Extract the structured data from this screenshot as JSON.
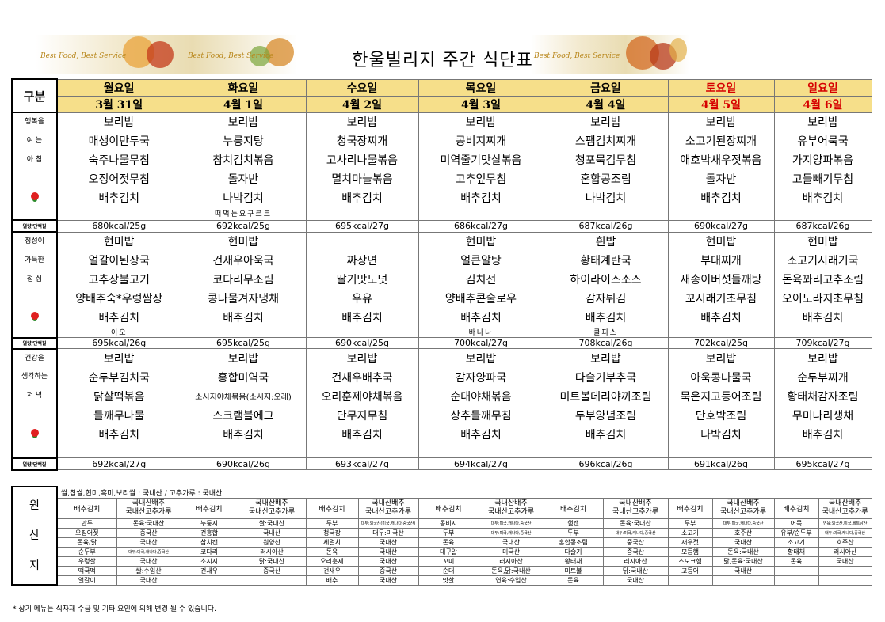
{
  "title": "한울빌리지 주간 식단표",
  "banner_text": "Best Food, Best Service",
  "header": {
    "label": "구분",
    "days": [
      "월요일",
      "화요일",
      "수요일",
      "목요일",
      "금요일",
      "토요일",
      "일요일"
    ],
    "dates": [
      "3월 31일",
      "4월 1일",
      "4월 2일",
      "4월 3일",
      "4월 4일",
      "4월 5일",
      "4월 6일"
    ]
  },
  "kcal_label": "열량/단백질",
  "breakfast": {
    "side": [
      "행복을",
      "여 는",
      "아 침"
    ],
    "rows": [
      [
        "보리밥",
        "보리밥",
        "보리밥",
        "보리밥",
        "보리밥",
        "보리밥",
        "보리밥"
      ],
      [
        "매생이만두국",
        "누룽지탕",
        "청국장찌개",
        "콩비지찌개",
        "스팸김치찌개",
        "소고기된장찌개",
        "유부어묵국"
      ],
      [
        "숙주나물무침",
        "참치김치볶음",
        "고사리나물볶음",
        "미역줄기맛살볶음",
        "청포묵김무침",
        "애호박새우젓볶음",
        "가지양파볶음"
      ],
      [
        "오징어젓무침",
        "돌자반",
        "멸치마늘볶음",
        "고추잎무침",
        "혼합콩조림",
        "돌자반",
        "고들빼기무침"
      ],
      [
        "배추김치",
        "나박김치",
        "배추김치",
        "배추김치",
        "나박김치",
        "배추김치",
        "배추김치"
      ],
      [
        "",
        "떠먹는요구르트",
        "",
        "",
        "",
        "",
        ""
      ]
    ],
    "kcal": [
      "680kcal/25g",
      "692kcal/25g",
      "695kcal/27g",
      "686kcal/27g",
      "687kcal/26g",
      "690kcal/27g",
      "687kcal/26g"
    ]
  },
  "lunch": {
    "side": [
      "정성이",
      "가득한",
      "점 심"
    ],
    "rows": [
      [
        "현미밥",
        "현미밥",
        "",
        "현미밥",
        "흰밥",
        "현미밥",
        "현미밥"
      ],
      [
        "얼갈이된장국",
        "건새우아욱국",
        "짜장면",
        "얼큰알탕",
        "황태계란국",
        "부대찌개",
        "소고기시래기국"
      ],
      [
        "고추장불고기",
        "코다리무조림",
        "딸기맛도넛",
        "김치전",
        "하이라이스소스",
        "새송이버섯들깨탕",
        "돈육꽈리고추조림"
      ],
      [
        "양배추숙*우렁쌈장",
        "콩나물겨자냉채",
        "우유",
        "양배추콘술로우",
        "감자튀김",
        "꼬시래기초무침",
        "오이도라지초무침"
      ],
      [
        "배추김치",
        "배추김치",
        "배추김치",
        "배추김치",
        "배추김치",
        "배추김치",
        "배추김치"
      ],
      [
        "이오",
        "",
        "",
        "바나나",
        "쿨피스",
        "",
        ""
      ]
    ],
    "kcal": [
      "695kcal/26g",
      "695kcal/25g",
      "690kcal/25g",
      "700kcal/27g",
      "708kcal/26g",
      "702kcal/25g",
      "709kcal/27g"
    ]
  },
  "dinner": {
    "side": [
      "건강을",
      "생각하는",
      "저 녁"
    ],
    "rows": [
      [
        "보리밥",
        "보리밥",
        "보리밥",
        "보리밥",
        "보리밥",
        "보리밥",
        "보리밥"
      ],
      [
        "순두부김치국",
        "홍합미역국",
        "건새우배추국",
        "감자양파국",
        "다슬기부추국",
        "아욱콩나물국",
        "순두부찌개"
      ],
      [
        "닭살떡볶음",
        "소시지야채볶음(소시지:오레)",
        "오리훈제야채볶음",
        "순대야채볶음",
        "미트볼데리야끼조림",
        "묵은지고등어조림",
        "황태채감자조림"
      ],
      [
        "들깨무나물",
        "스크램블에그",
        "단무지무침",
        "상추들깨무침",
        "두부양념조림",
        "단호박조림",
        "무미나리생채"
      ],
      [
        "배추김치",
        "배추김치",
        "배추김치",
        "배추김치",
        "배추김치",
        "나박김치",
        "배추김치"
      ],
      [
        "",
        "",
        "",
        "",
        "",
        "",
        ""
      ]
    ],
    "kcal": [
      "692kcal/27g",
      "690kcal/26g",
      "693kcal/27g",
      "694kcal/27g",
      "696kcal/26g",
      "691kcal/26g",
      "695kcal/27g"
    ]
  },
  "origin": {
    "label": [
      "원",
      "산",
      "지"
    ],
    "top_note": "쌀,찹쌀,현미,흑미,보리쌀 : 국내산 / 고추가루 : 국내산",
    "kimchi_head": [
      "배추김치",
      "국내산배추",
      "국내산고추가루"
    ],
    "rows": [
      [
        "만두",
        "돈육:국내산",
        "누룽지",
        "쌀:국내산",
        "두부",
        "대두:외국산(미국,캐나다,중국산)",
        "콩비지",
        "대두:미국,캐나다,중국산",
        "햄캔",
        "돈육:국내산",
        "두부",
        "대두:미국,캐나다,중국산",
        "어묵",
        "연육:외국산,미국,베트남산"
      ],
      [
        "오징어젓",
        "중국산",
        "건홍합",
        "국내산",
        "청국장",
        "대두:미국산",
        "두부",
        "대두:미국,캐나다,중국산",
        "두부",
        "대두:미국,캐나다,중국산",
        "소고기",
        "호주산",
        "유부/순두부",
        "대두:미국,캐나다,중국산"
      ],
      [
        "돈육/닭",
        "국내산",
        "참치캔",
        "원양산",
        "세멸치",
        "국내산",
        "돈육",
        "국내산",
        "혼합콩조림",
        "중국산",
        "새우젓",
        "국내산",
        "소고기",
        "호주산"
      ],
      [
        "순두부",
        "대두:미국,캐나다,중국산",
        "코다리",
        "러시아산",
        "돈육",
        "국내산",
        "대구알",
        "미국산",
        "다슬기",
        "중국산",
        "모듬햄",
        "돈육:국내산",
        "황태채",
        "러시아산"
      ],
      [
        "우렁살",
        "국내산",
        "소시지",
        "닭:국내산",
        "오리훈제",
        "국내산",
        "꼬미",
        "러시아산",
        "황태채",
        "러시아산",
        "스모크햄",
        "닭,돈육:국내산",
        "돈육",
        "국내산"
      ],
      [
        "떡국떡",
        "쌀:수입산",
        "건새우",
        "중국산",
        "건새우",
        "중국산",
        "순대",
        "돈육,닭:국내산",
        "미트볼",
        "닭:국내산",
        "고등어",
        "국내산",
        "",
        ""
      ],
      [
        "얼갈이",
        "국내산",
        "",
        "",
        "배추",
        "국내산",
        "맛살",
        "연육:수입산",
        "돈육",
        "국내산",
        "",
        "",
        "",
        ""
      ]
    ]
  },
  "footnote": "* 상기 메뉴는 식자재 수급 및 기타 요인에 의해 변경 될 수 있습니다."
}
